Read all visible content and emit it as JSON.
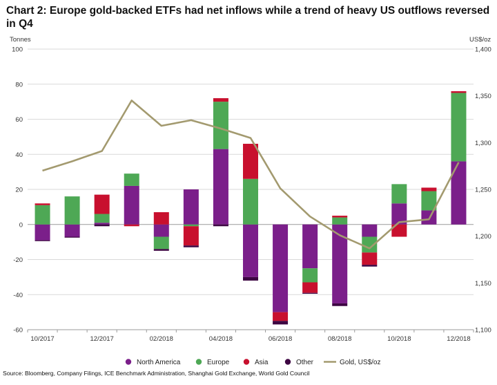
{
  "title": "Chart 2: Europe gold-backed ETFs had net inflows while a trend of heavy US outflows reversed in Q4",
  "source": "Source: Bloomberg, Company Filings, ICE Benchmark Administration, Shanghai Gold Exchange, World Gold Council",
  "chart_data": {
    "type": "bar",
    "stacked": true,
    "categories": [
      "10/2017",
      "11/2017",
      "12/2017",
      "01/2018",
      "02/2018",
      "03/2018",
      "04/2018",
      "05/2018",
      "06/2018",
      "07/2018",
      "08/2018",
      "09/2018",
      "10/2018",
      "11/2018",
      "12/2018"
    ],
    "x_tick_labels": [
      "10/2017",
      "12/2017",
      "02/2018",
      "04/2018",
      "06/2018",
      "08/2018",
      "10/2018",
      "12/2018"
    ],
    "ylabel": "Tonnes",
    "y2label": "US$/oz",
    "ylim": [
      -60,
      100
    ],
    "y_ticks": [
      -60,
      -40,
      -20,
      0,
      20,
      40,
      60,
      80,
      100
    ],
    "y2lim": [
      1100,
      1400
    ],
    "y2_ticks": [
      1100,
      1150,
      1200,
      1250,
      1300,
      1350,
      1400
    ],
    "y2_tick_labels": [
      "1,100",
      "1,150",
      "1,200",
      "1,250",
      "1,300",
      "1,350",
      "1,400"
    ],
    "grid": "horizontal",
    "legend_position": "bottom",
    "series": [
      {
        "name": "North America",
        "color": "#7b1f8a",
        "values": [
          -9,
          -7,
          1,
          22,
          -7,
          20,
          43,
          -30,
          -50,
          -25,
          -45,
          -7,
          12,
          8,
          36
        ]
      },
      {
        "name": "Europe",
        "color": "#4ea855",
        "values": [
          11,
          16,
          5,
          7,
          -7,
          -1,
          27,
          26,
          0,
          -8,
          4,
          -9,
          11,
          11,
          39
        ]
      },
      {
        "name": "Asia",
        "color": "#c8102e",
        "values": [
          1,
          0,
          11,
          -1,
          7,
          -11,
          2,
          20,
          -5,
          -6,
          1,
          -7,
          -7,
          2,
          1
        ]
      },
      {
        "name": "Other",
        "color": "#3d0642",
        "values": [
          -0.5,
          -0.5,
          -1,
          0,
          -1,
          -1,
          -1,
          -2,
          -2,
          -0.5,
          -1.5,
          -1,
          0,
          0,
          0
        ]
      }
    ],
    "line_series": {
      "name": "Gold, US$/oz",
      "color": "#a39a6f",
      "axis": "right",
      "values": [
        1270,
        1280,
        1291,
        1345,
        1318,
        1324,
        1315,
        1305,
        1251,
        1221,
        1201,
        1187,
        1215,
        1218,
        1279
      ]
    }
  }
}
